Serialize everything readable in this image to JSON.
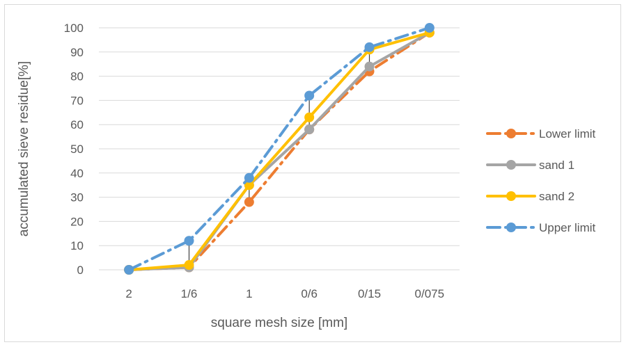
{
  "chart_data": {
    "type": "line",
    "title": "",
    "xlabel": "square mesh size [mm]",
    "ylabel": "accumulated sieve residue[%]",
    "ylim": [
      0,
      100
    ],
    "yticks": [
      0,
      10,
      20,
      30,
      40,
      50,
      60,
      70,
      80,
      90,
      100
    ],
    "categories": [
      "2",
      "1/6",
      "1",
      "0/6",
      "0/15",
      "0/075"
    ],
    "grid": "horizontal",
    "legend_position": "right",
    "series": [
      {
        "name": "Lower limit",
        "values": [
          0,
          1,
          28,
          58,
          82,
          98
        ],
        "color": "#ED7D31",
        "style": "dash-dot"
      },
      {
        "name": "sand 1",
        "values": [
          0,
          1,
          35,
          58,
          84,
          98
        ],
        "color": "#A5A5A5",
        "style": "solid"
      },
      {
        "name": "sand 2",
        "values": [
          0,
          2,
          35,
          63,
          91,
          98
        ],
        "color": "#FFC000",
        "style": "solid"
      },
      {
        "name": "Upper limit",
        "values": [
          0,
          12,
          38,
          72,
          92,
          100
        ],
        "color": "#5B9BD5",
        "style": "dash-dot"
      }
    ],
    "high_low_lines": true
  }
}
